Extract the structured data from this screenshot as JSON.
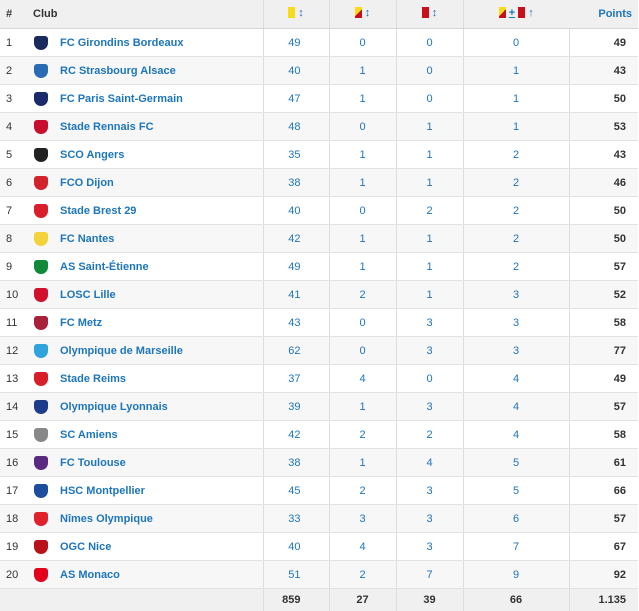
{
  "header": {
    "rank": "#",
    "club": "Club",
    "sort_arrow": "↕",
    "plus_sign": "+",
    "sort_up": "↑",
    "points": "Points"
  },
  "rows": [
    {
      "rank": "1",
      "club": "FC Girondins Bordeaux",
      "yellow": "49",
      "second_yellow": "0",
      "red": "0",
      "total": "0",
      "points": "49",
      "logo_color": "#1b2a5c"
    },
    {
      "rank": "2",
      "club": "RC Strasbourg Alsace",
      "yellow": "40",
      "second_yellow": "1",
      "red": "0",
      "total": "1",
      "points": "43",
      "logo_color": "#2a6bb5"
    },
    {
      "rank": "3",
      "club": "FC Paris Saint-Germain",
      "yellow": "47",
      "second_yellow": "1",
      "red": "0",
      "total": "1",
      "points": "50",
      "logo_color": "#1a2b6b"
    },
    {
      "rank": "4",
      "club": "Stade Rennais FC",
      "yellow": "48",
      "second_yellow": "0",
      "red": "1",
      "total": "1",
      "points": "53",
      "logo_color": "#c8102e"
    },
    {
      "rank": "5",
      "club": "SCO Angers",
      "yellow": "35",
      "second_yellow": "1",
      "red": "1",
      "total": "2",
      "points": "43",
      "logo_color": "#222222"
    },
    {
      "rank": "6",
      "club": "FCO Dijon",
      "yellow": "38",
      "second_yellow": "1",
      "red": "1",
      "total": "2",
      "points": "46",
      "logo_color": "#d2222c"
    },
    {
      "rank": "7",
      "club": "Stade Brest 29",
      "yellow": "40",
      "second_yellow": "0",
      "red": "2",
      "total": "2",
      "points": "50",
      "logo_color": "#d91e2c"
    },
    {
      "rank": "8",
      "club": "FC Nantes",
      "yellow": "42",
      "second_yellow": "1",
      "red": "1",
      "total": "2",
      "points": "50",
      "logo_color": "#f4d23c"
    },
    {
      "rank": "9",
      "club": "AS Saint-Étienne",
      "yellow": "49",
      "second_yellow": "1",
      "red": "1",
      "total": "2",
      "points": "57",
      "logo_color": "#0e8a3a"
    },
    {
      "rank": "10",
      "club": "LOSC Lille",
      "yellow": "41",
      "second_yellow": "2",
      "red": "1",
      "total": "3",
      "points": "52",
      "logo_color": "#d0102c"
    },
    {
      "rank": "11",
      "club": "FC Metz",
      "yellow": "43",
      "second_yellow": "0",
      "red": "3",
      "total": "3",
      "points": "58",
      "logo_color": "#a8213a"
    },
    {
      "rank": "12",
      "club": "Olympique de Marseille",
      "yellow": "62",
      "second_yellow": "0",
      "red": "3",
      "total": "3",
      "points": "77",
      "logo_color": "#2fa4dc"
    },
    {
      "rank": "13",
      "club": "Stade Reims",
      "yellow": "37",
      "second_yellow": "4",
      "red": "0",
      "total": "4",
      "points": "49",
      "logo_color": "#d81e2a"
    },
    {
      "rank": "14",
      "club": "Olympique Lyonnais",
      "yellow": "39",
      "second_yellow": "1",
      "red": "3",
      "total": "4",
      "points": "57",
      "logo_color": "#1c3c8c"
    },
    {
      "rank": "15",
      "club": "SC Amiens",
      "yellow": "42",
      "second_yellow": "2",
      "red": "2",
      "total": "4",
      "points": "58",
      "logo_color": "#888888"
    },
    {
      "rank": "16",
      "club": "FC Toulouse",
      "yellow": "38",
      "second_yellow": "1",
      "red": "4",
      "total": "5",
      "points": "61",
      "logo_color": "#5a2a82"
    },
    {
      "rank": "17",
      "club": "HSC Montpellier",
      "yellow": "45",
      "second_yellow": "2",
      "red": "3",
      "total": "5",
      "points": "66",
      "logo_color": "#1d4e9e"
    },
    {
      "rank": "18",
      "club": "Nîmes Olympique",
      "yellow": "33",
      "second_yellow": "3",
      "red": "3",
      "total": "6",
      "points": "57",
      "logo_color": "#e0202a"
    },
    {
      "rank": "19",
      "club": "OGC Nice",
      "yellow": "40",
      "second_yellow": "4",
      "red": "3",
      "total": "7",
      "points": "67",
      "logo_color": "#b8121a"
    },
    {
      "rank": "20",
      "club": "AS Monaco",
      "yellow": "51",
      "second_yellow": "2",
      "red": "7",
      "total": "9",
      "points": "92",
      "logo_color": "#e2001a"
    }
  ],
  "totals": {
    "yellow": "859",
    "second_yellow": "27",
    "red": "39",
    "total": "66",
    "points": "1.135"
  },
  "colors": {
    "link_blue": "#1d75bc",
    "yellow_card": "#f7dc1a",
    "red_card": "#c8101a"
  }
}
